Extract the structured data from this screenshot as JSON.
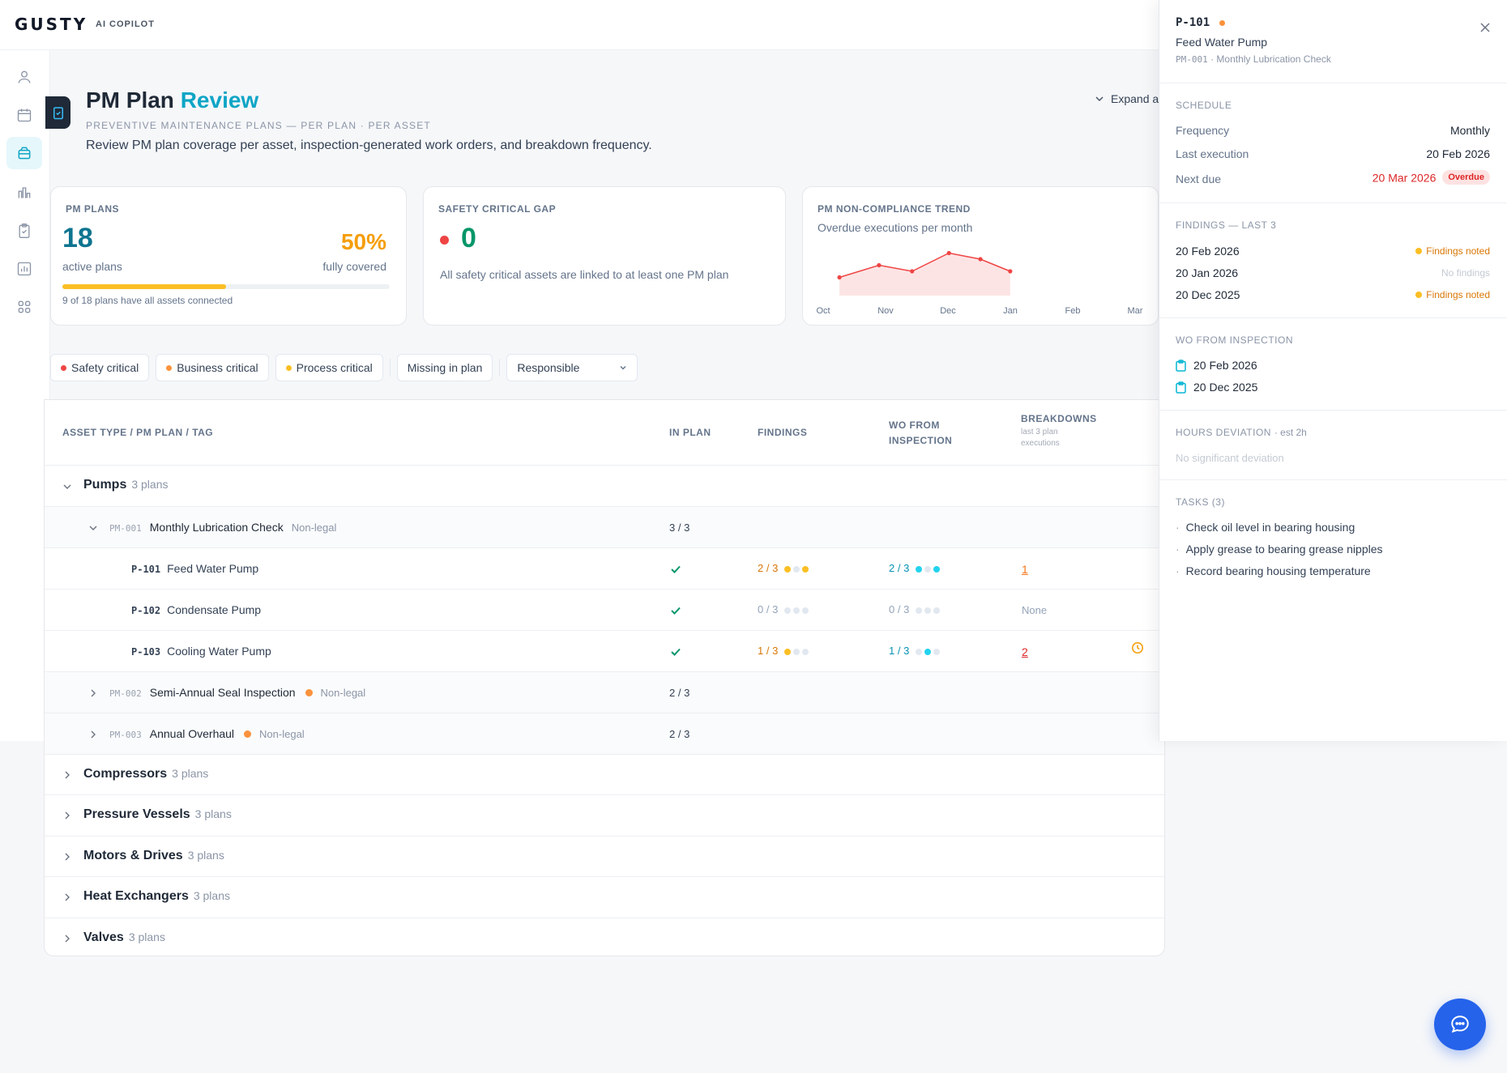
{
  "app": {
    "logo": "GUSTY",
    "logo_sub": "AI COPILOT"
  },
  "sidebar": {
    "icons": [
      "user-icon",
      "calendar-icon",
      "database-icon",
      "bar-chart-icon",
      "clipboard-check-icon",
      "chart-icon",
      "grid-icon"
    ]
  },
  "header": {
    "title_main": "PM Plan",
    "title_accent": "Review",
    "subtitle": "PREVENTIVE MAINTENANCE PLANS — PER PLAN · PER ASSET",
    "description": "Review PM plan coverage per asset, inspection-generated work orders, and breakdown frequency.",
    "expand_label": "Expand a"
  },
  "cards": {
    "pm_plans": {
      "label": "PM PLANS",
      "count": "18",
      "count_label": "active plans",
      "pct": "50%",
      "pct_label": "fully covered",
      "progress": 0.5,
      "note": "9 of 18 plans have all assets connected"
    },
    "safety_gap": {
      "label": "SAFETY CRITICAL GAP",
      "value": "0",
      "note": "All safety critical assets are linked to at least one PM plan"
    },
    "trend": {
      "label": "PM NON-COMPLIANCE TREND",
      "subtitle": "Overdue executions per month"
    }
  },
  "chart_data": {
    "type": "area",
    "title": "PM NON-COMPLIANCE TREND",
    "subtitle": "Overdue executions per month",
    "categories": [
      "Oct",
      "Nov",
      "Dec",
      "Jan",
      "Feb",
      "Mar"
    ],
    "x_values": [
      0.3,
      1.03,
      1.64,
      2.32,
      2.9,
      3.45
    ],
    "y_values": [
      3,
      5,
      4,
      7,
      6,
      4
    ],
    "color": "#ef4444"
  },
  "filters": {
    "safety": "Safety critical",
    "business": "Business critical",
    "process": "Process critical",
    "missing": "Missing in plan",
    "responsible": "Responsible",
    "colors": {
      "safety": "#ef4444",
      "business": "#fb923c",
      "process": "#fbbf24"
    }
  },
  "table": {
    "headers": {
      "asset": "ASSET TYPE / PM PLAN / TAG",
      "in_plan": "IN PLAN",
      "findings": "FINDINGS",
      "wo_line1": "WO FROM",
      "wo_line2": "INSPECTION",
      "breakdowns": "BREAKDOWNS",
      "breakdowns_sub1": "last 3 plan",
      "breakdowns_sub2": "executions"
    },
    "groups": [
      {
        "name": "Pumps",
        "count": "3 plans"
      },
      {
        "name": "Compressors",
        "count": "3 plans"
      },
      {
        "name": "Pressure Vessels",
        "count": "3 plans"
      },
      {
        "name": "Motors & Drives",
        "count": "3 plans"
      },
      {
        "name": "Heat Exchangers",
        "count": "3 plans"
      },
      {
        "name": "Valves",
        "count": "3 plans"
      }
    ],
    "plans": [
      {
        "id": "PM-001",
        "name": "Monthly Lubrication Check",
        "tag": "Non-legal",
        "in_plan": "3 / 3"
      },
      {
        "id": "PM-002",
        "name": "Semi-Annual Seal Inspection",
        "tag": "Non-legal",
        "in_plan": "2 / 3"
      },
      {
        "id": "PM-003",
        "name": "Annual Overhaul",
        "tag": "Non-legal",
        "in_plan": "2 / 3"
      }
    ],
    "assets": [
      {
        "tag": "P-101",
        "name": "Feed Water Pump",
        "findings": "2 / 3",
        "wo": "2 / 3",
        "breakdowns": "1"
      },
      {
        "tag": "P-102",
        "name": "Condensate Pump",
        "findings": "0 / 3",
        "wo": "0 / 3",
        "breakdowns": "None"
      },
      {
        "tag": "P-103",
        "name": "Cooling Water Pump",
        "findings": "1 / 3",
        "wo": "1 / 3",
        "breakdowns": "2"
      }
    ]
  },
  "panel": {
    "tag": "P-101",
    "name": "Feed Water Pump",
    "plan_id": "PM-001",
    "plan_name": " · Monthly Lubrication Check",
    "schedule": {
      "title": "SCHEDULE",
      "frequency_label": "Frequency",
      "frequency": "Monthly",
      "last_label": "Last execution",
      "last": "20 Feb 2026",
      "next_label": "Next due",
      "next": "20 Mar 2026",
      "next_badge": "Overdue"
    },
    "findings": {
      "title": "FINDINGS — LAST 3",
      "items": [
        {
          "date": "20 Feb 2026",
          "status": "Findings noted"
        },
        {
          "date": "20 Jan 2026",
          "status": "No findings"
        },
        {
          "date": "20 Dec 2025",
          "status": "Findings noted"
        }
      ]
    },
    "wo": {
      "title": "WO FROM INSPECTION",
      "items": [
        "20 Feb 2026",
        "20 Dec 2025"
      ]
    },
    "hours": {
      "title": "HOURS DEVIATION",
      "est": "· est 2h",
      "note": "No significant deviation"
    },
    "tasks": {
      "title": "TASKS (3)",
      "items": [
        "Check oil level in bearing housing",
        "Apply grease to bearing grease nipples",
        "Record bearing housing temperature"
      ]
    }
  }
}
